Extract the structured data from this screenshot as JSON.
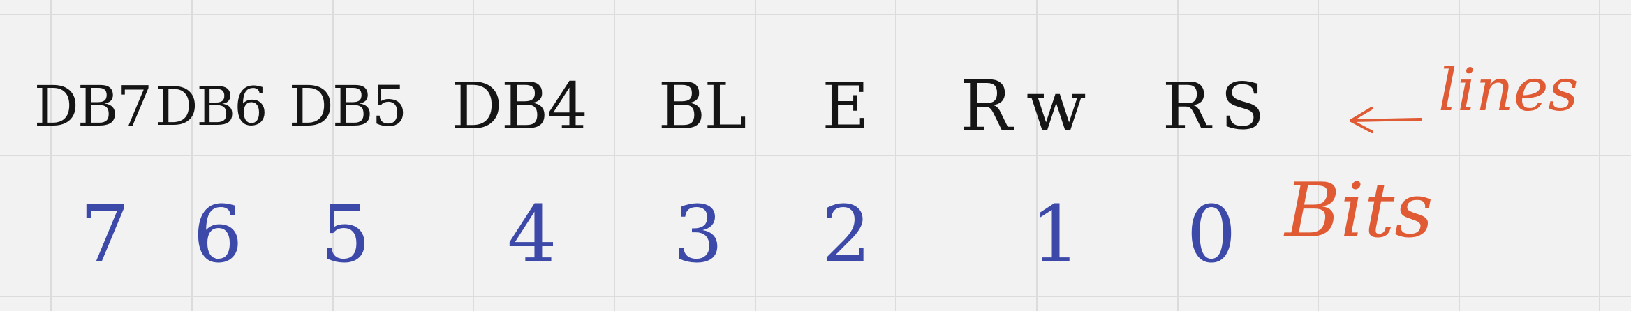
{
  "labels": [
    "DB7",
    "DB6",
    "DB5",
    "DB4",
    "BL",
    "E",
    "Rw",
    "RS"
  ],
  "bits": [
    "7",
    "6",
    "5",
    "4",
    "3",
    "2",
    "1",
    "0"
  ],
  "annotations": {
    "lines": "lines",
    "bits": "Bits"
  },
  "colors": {
    "background": "#f2f2f2",
    "grid": "#dcdcdc",
    "ink": "#151515",
    "bit_ink": "#3c49a8",
    "note_ink": "#e05a33"
  }
}
